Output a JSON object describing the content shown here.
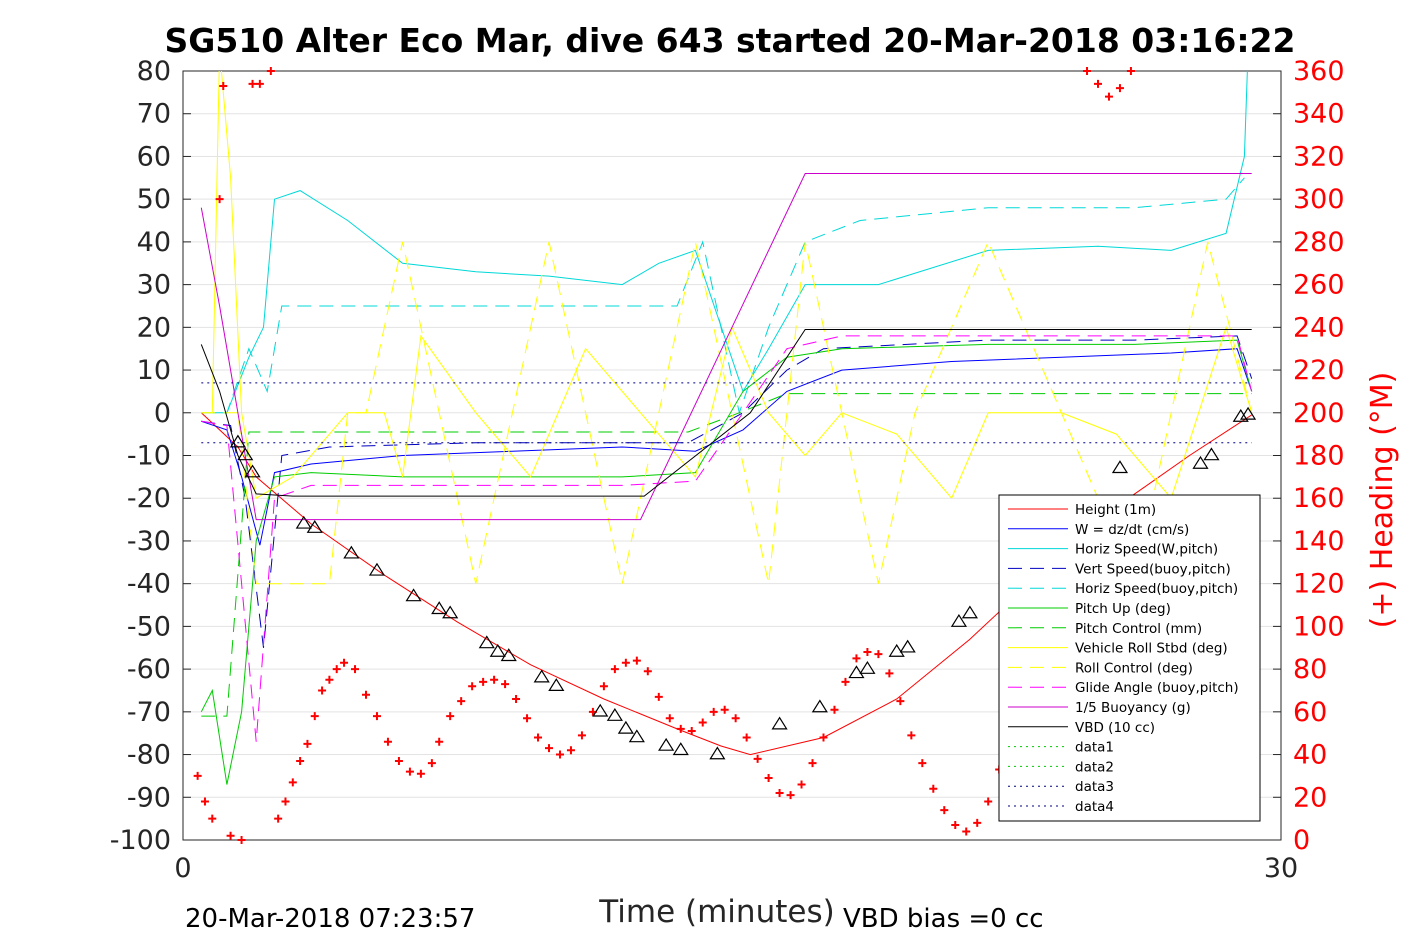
{
  "chart_data": {
    "type": "line",
    "title": "SG510 Alter Eco Mar, dive 643 started 20-Mar-2018 03:16:22",
    "xlabel": "Time (minutes)",
    "ylabel_right": "(+) Heading (°M)",
    "footer_left": "20-Mar-2018 07:23:57",
    "footer_right": "VBD bias =0 cc",
    "xlim": [
      0,
      30
    ],
    "ylim": [
      -100,
      80
    ],
    "ylim_right": [
      0,
      360
    ],
    "x_ticks": [
      "0",
      "30"
    ],
    "y_ticks": [
      "80",
      "70",
      "60",
      "50",
      "40",
      "30",
      "20",
      "10",
      "0",
      "-10",
      "-20",
      "-30",
      "-40",
      "-50",
      "-60",
      "-70",
      "-80",
      "-90",
      "-100"
    ],
    "y_right_ticks": [
      "360",
      "340",
      "320",
      "300",
      "280",
      "260",
      "240",
      "220",
      "200",
      "180",
      "160",
      "140",
      "120",
      "100",
      "80",
      "60",
      "40",
      "20",
      "0"
    ],
    "grid": "horizontal",
    "legend_position": "bottom-right",
    "series": [
      {
        "name": "Height (1m)",
        "color": "#ff0000",
        "style": "solid",
        "x": [
          0.5,
          1.5,
          2.0,
          3.5,
          5.5,
          7.5,
          9.5,
          11.5,
          13.5,
          14.7,
          15.5,
          17.5,
          19.5,
          21.5,
          23.5,
          25.5,
          27.5,
          29.2
        ],
        "y": [
          0,
          -8,
          -15,
          -26,
          -38,
          -49,
          -59,
          -67,
          -74,
          -78,
          -80,
          -76,
          -67,
          -53,
          -37,
          -22,
          -10,
          -0.5
        ]
      },
      {
        "name": "W = dz/dt (cm/s)",
        "color": "#0000ff",
        "style": "solid",
        "x": [
          0.5,
          1.2,
          1.6,
          2.1,
          2.5,
          3.5,
          6.0,
          9.0,
          12.0,
          14.0,
          15.3,
          16.5,
          18.0,
          21.0,
          24.0,
          27.0,
          28.8,
          29.2
        ],
        "y": [
          -2,
          -4,
          -15,
          -31,
          -14,
          -12,
          -10,
          -9,
          -8,
          -9,
          -4,
          5,
          10,
          12,
          13,
          14,
          15,
          5
        ]
      },
      {
        "name": "Horiz Speed(W,pitch)",
        "color": "#00d8d8",
        "style": "solid",
        "x": [
          0.5,
          1.2,
          1.8,
          2.2,
          2.5,
          3.2,
          4.5,
          6.0,
          8.0,
          10.0,
          12.0,
          13.0,
          14.0,
          15.3,
          16.0,
          17.0,
          19.0,
          22.0,
          25.0,
          27.0,
          28.5,
          29.0,
          29.1
        ],
        "y": [
          0,
          0,
          13,
          20,
          50,
          52,
          45,
          35,
          33,
          32,
          30,
          35,
          38,
          5,
          15,
          30,
          30,
          38,
          39,
          38,
          42,
          60,
          85
        ]
      },
      {
        "name": "Vert Speed(buoy,pitch)",
        "color": "#0000c0",
        "style": "dashed",
        "x": [
          0.5,
          1.3,
          1.7,
          2.2,
          2.7,
          4.0,
          8.0,
          12.0,
          13.8,
          15.3,
          16.5,
          17.5,
          22.0,
          26.0,
          28.8,
          29.2
        ],
        "y": [
          -2,
          -3,
          -20,
          -55,
          -10,
          -8,
          -7,
          -7,
          -7,
          0,
          10,
          15,
          17,
          17,
          18,
          8
        ]
      },
      {
        "name": "Horiz Speed(buoy,pitch)",
        "color": "#00d8d8",
        "style": "dashed",
        "x": [
          0.5,
          1.2,
          1.8,
          2.3,
          2.7,
          4.5,
          8.0,
          12.0,
          13.5,
          14.2,
          15.2,
          16.0,
          17.0,
          18.5,
          22.0,
          26.0,
          28.5,
          29.0
        ],
        "y": [
          0,
          0,
          15,
          5,
          25,
          25,
          25,
          25,
          25,
          40,
          0,
          20,
          40,
          45,
          48,
          48,
          50,
          55
        ]
      },
      {
        "name": "Pitch Up (deg)",
        "color": "#00cc00",
        "style": "solid",
        "x": [
          0.5,
          0.8,
          1.2,
          1.6,
          2.0,
          2.5,
          3.5,
          6.0,
          9.0,
          12.0,
          14.0,
          15.3,
          16.5,
          18.0,
          22.0,
          26.0,
          28.8,
          29.2
        ],
        "y": [
          -70,
          -65,
          -87,
          -70,
          -30,
          -15,
          -14,
          -15,
          -15,
          -15,
          -14,
          5,
          13,
          15,
          16,
          16,
          17,
          5
        ]
      },
      {
        "name": "Pitch Control (mm)",
        "color": "#00cc00",
        "style": "dashed",
        "x": [
          0.5,
          1.2,
          1.8,
          2.3,
          3.0,
          8.0,
          13.8,
          15.2,
          16.5,
          22.0,
          29.2
        ],
        "y": [
          -71,
          -71,
          -4.5,
          -4.5,
          -4.5,
          -4.5,
          -4.5,
          0,
          4.5,
          4.5,
          4.5
        ]
      },
      {
        "name": "Vehicle Roll Stbd (deg)",
        "color": "#ffff00",
        "style": "solid",
        "x": [
          0.5,
          0.8,
          1.0,
          1.3,
          1.6,
          2.0,
          3.0,
          4.5,
          5.5,
          6.0,
          6.5,
          8.0,
          9.5,
          11.0,
          12.5,
          14.0,
          15.0,
          16.0,
          17.0,
          18.0,
          19.5,
          21.0,
          22.0,
          24.0,
          25.5,
          27.0,
          28.5,
          29.2
        ],
        "y": [
          0,
          0,
          85,
          55,
          0,
          -20,
          -15,
          0,
          0,
          -15,
          18,
          0,
          -15,
          15,
          0,
          -15,
          20,
          0,
          -10,
          0,
          -5,
          -20,
          0,
          0,
          -5,
          -20,
          20,
          0
        ]
      },
      {
        "name": "Roll Control (deg)",
        "color": "#ffff00",
        "style": "dashed",
        "x": [
          0.5,
          1.5,
          2.0,
          4.0,
          4.5,
          5.0,
          6.0,
          7.0,
          8.0,
          9.0,
          10.0,
          11.0,
          12.0,
          13.0,
          14.0,
          15.0,
          16.0,
          17.0,
          18.0,
          19.0,
          20.0,
          22.0,
          24.0,
          26.0,
          28.0,
          29.2
        ],
        "y": [
          0,
          0,
          -40,
          -40,
          0,
          0,
          40,
          0,
          -40,
          0,
          40,
          0,
          -40,
          0,
          40,
          0,
          -40,
          40,
          0,
          -40,
          0,
          40,
          0,
          -40,
          40,
          0
        ]
      },
      {
        "name": "Glide Angle (buoy,pitch)",
        "color": "#ff00ff",
        "style": "dashed",
        "x": [
          0.5,
          1.2,
          1.6,
          2.0,
          2.5,
          3.5,
          6.0,
          9.0,
          12.0,
          14.0,
          15.3,
          16.5,
          18.0,
          22.0,
          26.0,
          28.8,
          29.2
        ],
        "y": [
          -2,
          -3,
          -40,
          -77,
          -20,
          -17,
          -17,
          -17,
          -17,
          -16,
          0,
          15,
          18,
          18,
          18,
          18,
          5
        ]
      },
      {
        "name": "1/5 Buoyancy (g)",
        "color": "#cc00cc",
        "style": "solid",
        "x": [
          0.5,
          1.0,
          1.5,
          2.0,
          2.5,
          4.0,
          8.0,
          12.0,
          12.5,
          15.0,
          17.0,
          22.0,
          26.0,
          29.0,
          29.2
        ],
        "y": [
          48,
          25,
          0,
          -25,
          -25,
          -25,
          -25,
          -25,
          -25,
          20,
          56,
          56,
          56,
          56,
          56
        ]
      },
      {
        "name": "VBD (10 cc)",
        "color": "#000000",
        "style": "solid",
        "x": [
          0.5,
          1.0,
          1.5,
          2.0,
          3.0,
          8.0,
          12.0,
          12.6,
          15.5,
          17.0,
          22.0,
          26.0,
          29.2
        ],
        "y": [
          16,
          5,
          -10,
          -19,
          -19.5,
          -19.5,
          -19.5,
          -19.5,
          0,
          19.5,
          19.5,
          19.5,
          19.5
        ]
      },
      {
        "name": "data1",
        "color": "#00cc00",
        "style": "dotted",
        "x": [],
        "y": []
      },
      {
        "name": "data2",
        "color": "#00cc00",
        "style": "dotted",
        "x": [],
        "y": []
      },
      {
        "name": "data3",
        "color": "#000080",
        "style": "dotted",
        "x": [
          0.5,
          29.2
        ],
        "y": [
          7,
          7
        ]
      },
      {
        "name": "data4",
        "color": "#000080",
        "style": "dotted",
        "x": [
          0.5,
          29.2
        ],
        "y": [
          -7,
          -7
        ]
      }
    ],
    "heading_series": {
      "color": "#ff0000",
      "marker": "+",
      "axis": "right",
      "x": [
        0.4,
        0.6,
        0.8,
        1.0,
        1.1,
        1.3,
        1.6,
        1.9,
        2.1,
        2.4,
        2.6,
        2.8,
        3.0,
        3.2,
        3.4,
        3.6,
        3.8,
        4.0,
        4.2,
        4.4,
        4.7,
        5.0,
        5.3,
        5.6,
        5.9,
        6.2,
        6.5,
        6.8,
        7.0,
        7.3,
        7.6,
        7.9,
        8.2,
        8.5,
        8.8,
        9.1,
        9.4,
        9.7,
        10.0,
        10.3,
        10.6,
        10.9,
        11.2,
        11.5,
        11.8,
        12.1,
        12.4,
        12.7,
        13.0,
        13.3,
        13.6,
        13.9,
        14.2,
        14.5,
        14.8,
        15.1,
        15.4,
        15.7,
        16.0,
        16.3,
        16.6,
        16.9,
        17.2,
        17.5,
        17.8,
        18.1,
        18.4,
        18.7,
        19.0,
        19.3,
        19.6,
        19.9,
        20.2,
        20.5,
        20.8,
        21.1,
        21.4,
        21.7,
        22.0,
        22.3,
        22.6,
        22.9,
        23.2,
        23.5,
        23.8,
        24.1,
        24.4,
        24.7,
        25.0,
        25.3,
        25.6,
        25.9,
        26.2,
        26.5,
        26.8,
        27.1,
        27.4,
        27.7,
        28.0,
        28.3,
        28.6,
        28.9
      ],
      "y": [
        30,
        18,
        10,
        300,
        353,
        2,
        0,
        354,
        354,
        360,
        10,
        18,
        27,
        37,
        45,
        58,
        70,
        75,
        80,
        83,
        80,
        68,
        58,
        46,
        37,
        32,
        31,
        36,
        46,
        58,
        65,
        72,
        74,
        75,
        73,
        66,
        57,
        48,
        43,
        40,
        42,
        49,
        60,
        72,
        80,
        83,
        84,
        79,
        67,
        57,
        52,
        51,
        55,
        60,
        61,
        57,
        48,
        38,
        29,
        22,
        21,
        26,
        36,
        48,
        61,
        74,
        85,
        88,
        87,
        78,
        65,
        49,
        36,
        24,
        14,
        7,
        4,
        8,
        18,
        33,
        50,
        66,
        80,
        88,
        90,
        87,
        79,
        360,
        354,
        348,
        352,
        360,
        86,
        82,
        76,
        68,
        60,
        55,
        50,
        46,
        42,
        40
      ]
    },
    "pitch_markers": {
      "color": "#000000",
      "marker": "triangle",
      "x": [
        1.5,
        1.7,
        1.9,
        3.3,
        3.6,
        4.6,
        5.3,
        6.3,
        7.0,
        7.3,
        8.3,
        8.6,
        8.9,
        9.8,
        10.2,
        11.4,
        11.8,
        12.1,
        12.4,
        13.2,
        13.6,
        14.6,
        16.3,
        17.4,
        18.4,
        18.7,
        19.5,
        19.8,
        21.2,
        21.5,
        22.8,
        23.1,
        23.9,
        24.3,
        25.6,
        27.8,
        28.1,
        28.9,
        29.1
      ],
      "y": [
        -7,
        -10,
        -14,
        -26,
        -27,
        -33,
        -37,
        -43,
        -46,
        -47,
        -54,
        -56,
        -57,
        -62,
        -64,
        -70,
        -71,
        -74,
        -76,
        -78,
        -79,
        -80,
        -73,
        -69,
        -61,
        -60,
        -56,
        -55,
        -49,
        -47,
        -35,
        -33,
        -25,
        -21,
        -13,
        -12,
        -10,
        -1,
        -0.5
      ]
    }
  }
}
